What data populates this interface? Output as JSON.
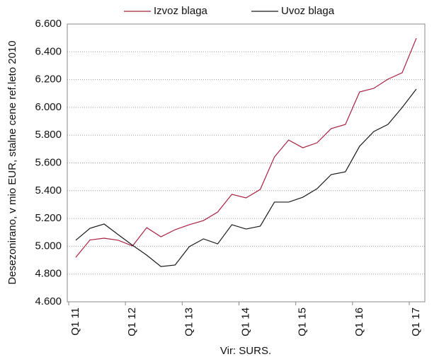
{
  "chart_data": {
    "type": "line",
    "y_label": "Desezonirano, v mio EUR, stalne cene ref.leto 2010",
    "source": "Vir: SURS.",
    "categories": [
      "Q1 11",
      null,
      null,
      null,
      "Q1 12",
      null,
      null,
      null,
      "Q1 13",
      null,
      null,
      null,
      "Q1 14",
      null,
      null,
      null,
      "Q1 15",
      null,
      null,
      null,
      "Q1 16",
      null,
      null,
      null,
      "Q1 17"
    ],
    "series": [
      {
        "name": "Izvoz blaga",
        "color": "#a8213f",
        "values": [
          4920,
          5045,
          5058,
          5043,
          5002,
          5134,
          5068,
          5119,
          5155,
          5185,
          5246,
          5374,
          5348,
          5409,
          5643,
          5765,
          5709,
          5745,
          5847,
          5877,
          6111,
          6137,
          6203,
          6249,
          6498
        ]
      },
      {
        "name": "Uvoz blaga",
        "color": "#1a1a1a",
        "values": [
          5043,
          5129,
          5160,
          5083,
          5007,
          4936,
          4854,
          4865,
          4997,
          5053,
          5017,
          5155,
          5124,
          5145,
          5318,
          5318,
          5353,
          5414,
          5516,
          5536,
          5720,
          5826,
          5877,
          5999,
          6132
        ]
      }
    ],
    "ylim": [
      4600,
      6600
    ],
    "yticks": [
      {
        "value": 4600,
        "label": "4.600"
      },
      {
        "value": 4800,
        "label": "4.800"
      },
      {
        "value": 5000,
        "label": "5.000"
      },
      {
        "value": 5200,
        "label": "5.200"
      },
      {
        "value": 5400,
        "label": "5.400"
      },
      {
        "value": 5600,
        "label": "5.600"
      },
      {
        "value": 5800,
        "label": "5.800"
      },
      {
        "value": 6000,
        "label": "6.000"
      },
      {
        "value": 6200,
        "label": "6.200"
      },
      {
        "value": 6400,
        "label": "6.400"
      },
      {
        "value": 6600,
        "label": "6.600"
      }
    ],
    "grid": true
  }
}
